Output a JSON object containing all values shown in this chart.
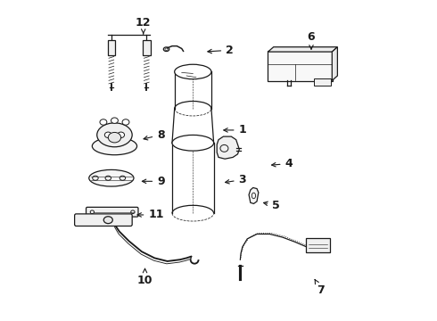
{
  "background_color": "#ffffff",
  "line_color": "#1a1a1a",
  "figsize": [
    4.9,
    3.6
  ],
  "dpi": 100,
  "label_positions": {
    "1": [
      0.575,
      0.595,
      0.505,
      0.595
    ],
    "2": [
      0.535,
      0.845,
      0.455,
      0.84
    ],
    "3": [
      0.575,
      0.44,
      0.51,
      0.43
    ],
    "4": [
      0.72,
      0.49,
      0.655,
      0.485
    ],
    "5": [
      0.68,
      0.36,
      0.63,
      0.37
    ],
    "6": [
      0.79,
      0.885,
      0.79,
      0.845
    ],
    "7": [
      0.82,
      0.095,
      0.8,
      0.13
    ],
    "8": [
      0.32,
      0.58,
      0.255,
      0.565
    ],
    "9": [
      0.32,
      0.435,
      0.25,
      0.435
    ],
    "10": [
      0.27,
      0.125,
      0.27,
      0.165
    ],
    "11": [
      0.305,
      0.33,
      0.235,
      0.33
    ],
    "12": [
      0.265,
      0.93,
      0.265,
      0.895
    ]
  }
}
